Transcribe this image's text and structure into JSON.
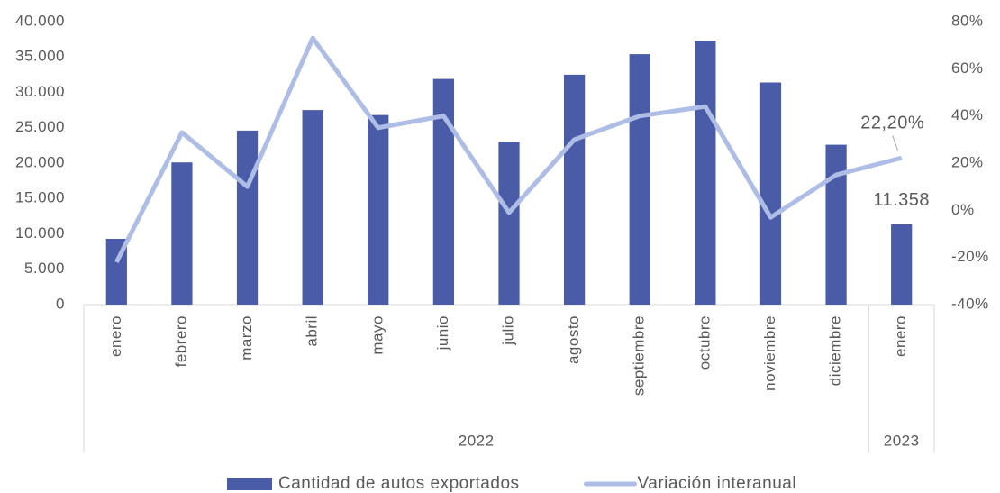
{
  "chart_data": {
    "type": "combo",
    "categories": [
      "enero",
      "febrero",
      "marzo",
      "abril",
      "mayo",
      "junio",
      "julio",
      "agosto",
      "septiembre",
      "octubre",
      "noviembre",
      "diciembre",
      "enero"
    ],
    "category_groups": [
      {
        "label": "2022",
        "span": 12
      },
      {
        "label": "2023",
        "span": 1
      }
    ],
    "series": [
      {
        "name": "Cantidad de autos exportados",
        "type": "bar",
        "color": "#4a5ba8",
        "values": [
          9300,
          20100,
          24600,
          27500,
          26800,
          31900,
          23000,
          32500,
          35400,
          37300,
          31400,
          22600,
          11358
        ],
        "value_labels": [
          null,
          null,
          null,
          null,
          null,
          null,
          null,
          null,
          null,
          null,
          null,
          null,
          "11.358"
        ]
      },
      {
        "name": "Variación interanual",
        "type": "line",
        "axis": "y2",
        "color": "#aebde6",
        "values": [
          -22,
          33,
          10,
          73,
          35,
          40,
          -1,
          30,
          40,
          44,
          -3,
          15,
          22.2
        ],
        "value_labels": [
          null,
          null,
          null,
          null,
          null,
          null,
          null,
          null,
          null,
          null,
          null,
          null,
          "22,20%"
        ]
      }
    ],
    "ylim": [
      0,
      40000
    ],
    "yticks": [
      0,
      {
        "value": 5000,
        "label": "5.000"
      },
      {
        "value": 10000,
        "label": "10.000"
      },
      {
        "value": 15000,
        "label": "15.000"
      },
      {
        "value": 20000,
        "label": "20.000"
      },
      {
        "value": 25000,
        "label": "25.000"
      },
      {
        "value": 30000,
        "label": "30.000"
      },
      {
        "value": 35000,
        "label": "35.000"
      },
      {
        "value": 40000,
        "label": "40.000"
      }
    ],
    "y2lim": [
      -40,
      80
    ],
    "y2ticks": [
      {
        "value": -40,
        "label": "-40%"
      },
      {
        "value": -20,
        "label": "-20%"
      },
      {
        "value": 0,
        "label": "0%"
      },
      {
        "value": 20,
        "label": "20%"
      },
      {
        "value": 40,
        "label": "40%"
      },
      {
        "value": 60,
        "label": "60%"
      },
      {
        "value": 80,
        "label": "80%"
      }
    ],
    "legend": "bottom"
  }
}
